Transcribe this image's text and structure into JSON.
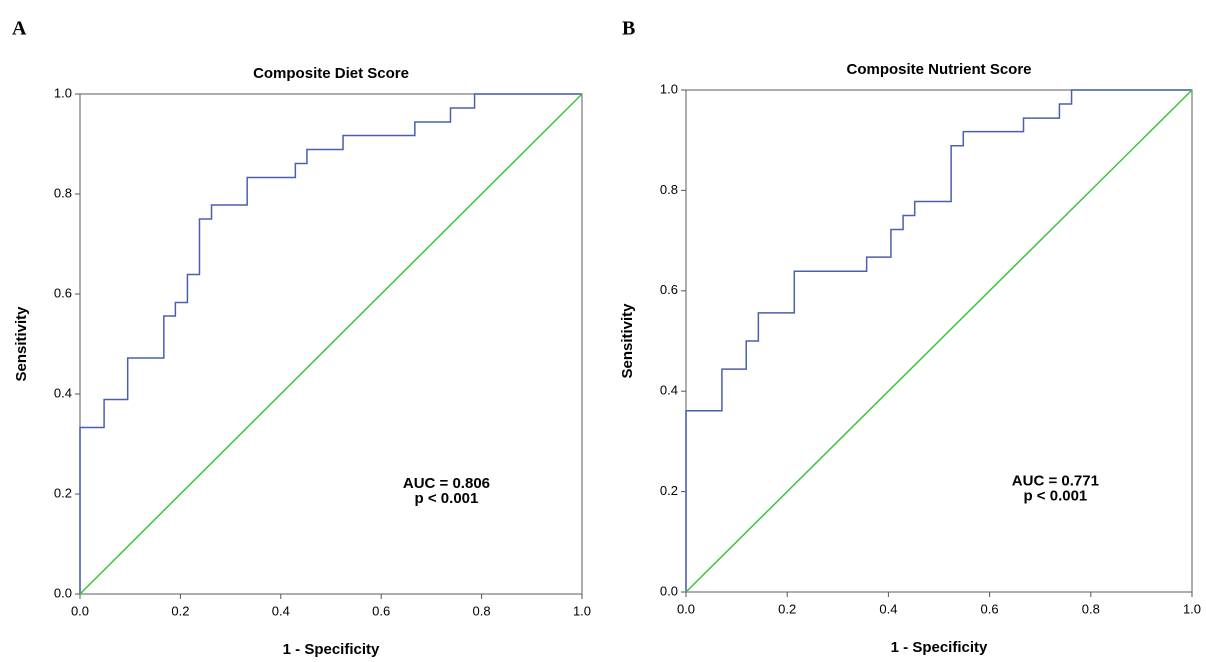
{
  "chart_data": [
    {
      "type": "line",
      "panel_label": "A",
      "title": "Composite Diet Score",
      "x_label": "1 - Specificity",
      "y_label": "Sensitivity",
      "annotations": [
        "AUC = 0.806",
        "p < 0.001"
      ],
      "xlim": [
        0,
        1
      ],
      "ylim": [
        0,
        1
      ],
      "xticks": [
        {
          "value": 0,
          "label": "0.0"
        },
        0.2,
        0.4,
        0.6,
        0.8,
        {
          "value": 1,
          "label": "1.0"
        }
      ],
      "yticks": [
        {
          "value": 0,
          "label": "0.0"
        },
        0.2,
        0.4,
        0.6,
        0.8,
        {
          "value": 1,
          "label": "1.0"
        }
      ],
      "series": [
        {
          "color": "#4a5fb0",
          "x": [
            0,
            0,
            0.048,
            0.048,
            0.095,
            0.095,
            0.167,
            0.167,
            0.19,
            0.19,
            0.214,
            0.214,
            0.238,
            0.238,
            0.262,
            0.262,
            0.333,
            0.333,
            0.429,
            0.429,
            0.452,
            0.452,
            0.524,
            0.524,
            0.667,
            0.667,
            0.738,
            0.738,
            0.786,
            0.786,
            1
          ],
          "values": [
            0,
            0.333,
            0.333,
            0.389,
            0.389,
            0.472,
            0.472,
            0.556,
            0.556,
            0.583,
            0.583,
            0.639,
            0.639,
            0.75,
            0.75,
            0.778,
            0.778,
            0.833,
            0.833,
            0.861,
            0.861,
            0.889,
            0.889,
            0.917,
            0.917,
            0.944,
            0.944,
            0.972,
            0.972,
            1,
            1
          ]
        },
        {
          "color": "#3cc43c",
          "x": [
            0,
            1
          ],
          "values": [
            0,
            1
          ]
        }
      ]
    },
    {
      "type": "line",
      "panel_label": "B",
      "title": "Composite Nutrient Score",
      "x_label": "1 - Specificity",
      "y_label": "Sensitivity",
      "annotations": [
        "AUC = 0.771",
        "p < 0.001"
      ],
      "xlim": [
        0,
        1
      ],
      "ylim": [
        0,
        1
      ],
      "xticks": [
        {
          "value": 0,
          "label": "0.0"
        },
        0.2,
        0.4,
        0.6,
        0.8,
        {
          "value": 1,
          "label": "1.0"
        }
      ],
      "yticks": [
        {
          "value": 0,
          "label": "0.0"
        },
        0.2,
        0.4,
        0.6,
        0.8,
        {
          "value": 1,
          "label": "1.0"
        }
      ],
      "series": [
        {
          "color": "#4a5fb0",
          "x": [
            0,
            0,
            0.071,
            0.071,
            0.119,
            0.119,
            0.143,
            0.143,
            0.214,
            0.214,
            0.357,
            0.357,
            0.405,
            0.405,
            0.429,
            0.429,
            0.452,
            0.452,
            0.524,
            0.524,
            0.548,
            0.548,
            0.667,
            0.667,
            0.738,
            0.738,
            0.762,
            0.762,
            1
          ],
          "values": [
            0,
            0.361,
            0.361,
            0.444,
            0.444,
            0.5,
            0.5,
            0.556,
            0.556,
            0.639,
            0.639,
            0.667,
            0.667,
            0.722,
            0.722,
            0.75,
            0.75,
            0.778,
            0.778,
            0.889,
            0.889,
            0.917,
            0.917,
            0.944,
            0.944,
            0.972,
            0.972,
            1,
            1
          ]
        },
        {
          "color": "#3cc43c",
          "x": [
            0,
            1
          ],
          "values": [
            0,
            1
          ]
        }
      ]
    }
  ]
}
